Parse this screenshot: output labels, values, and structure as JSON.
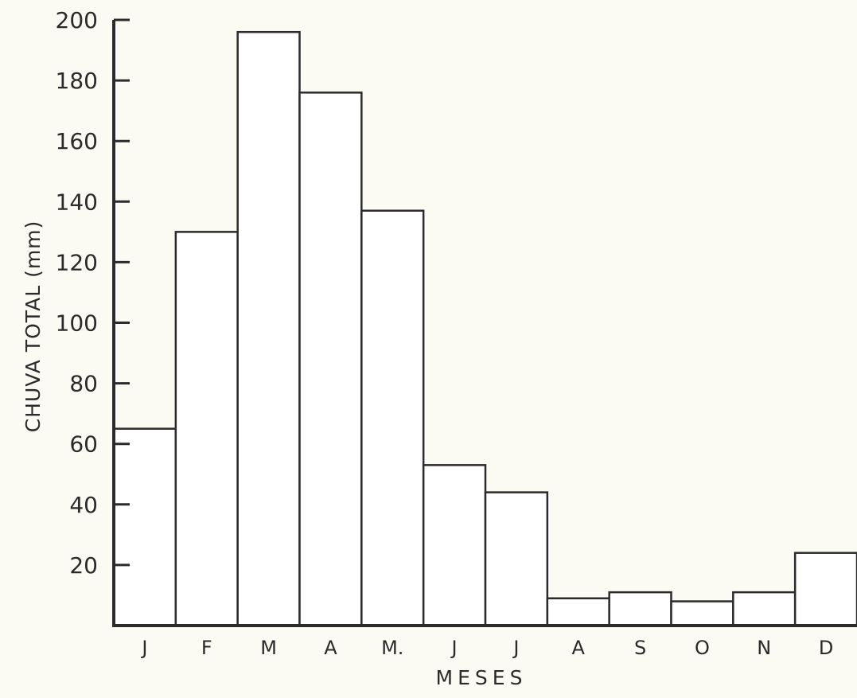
{
  "chart_data": {
    "type": "bar",
    "title": "",
    "xlabel": "MESES",
    "ylabel": "CHUVA TOTAL (mm)",
    "categories": [
      "J",
      "F",
      "M",
      "A",
      "M.",
      "J",
      "J",
      "A",
      "S",
      "O",
      "N",
      "D"
    ],
    "values": [
      65,
      130,
      196,
      176,
      137,
      53,
      44,
      9,
      11,
      8,
      11,
      24
    ],
    "ylim": [
      0,
      200
    ],
    "yticks": [
      20,
      40,
      60,
      80,
      100,
      120,
      140,
      160,
      180,
      200
    ],
    "grid": false,
    "legend": "none",
    "colors": {
      "bar_fill": "#ffffff",
      "bar_stroke": "#2b2b2b",
      "background": "#fbfbf4"
    }
  }
}
